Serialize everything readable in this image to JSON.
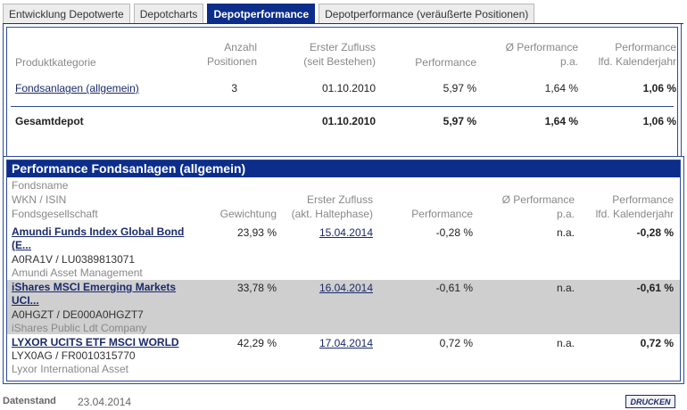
{
  "tabs": [
    {
      "label": "Entwicklung Depotwerte",
      "active": false
    },
    {
      "label": "Depotcharts",
      "active": false
    },
    {
      "label": "Depotperformance",
      "active": true
    },
    {
      "label": "Depotperformance (veräußerte Positionen)",
      "active": false
    }
  ],
  "overview": {
    "headers": {
      "category": "Produktkategorie",
      "count_1": "Anzahl",
      "count_2": "Positionen",
      "inflow_1": "Erster Zufluss",
      "inflow_2": "(seit Bestehen)",
      "performance": "Performance",
      "pa_1": "Ø Performance",
      "pa_2": "p.a.",
      "year_1": "Performance",
      "year_2": "lfd. Kalenderjahr"
    },
    "rows": [
      {
        "category": "Fondsanlagen (allgemein)",
        "count": "3",
        "inflow": "01.10.2010",
        "performance": "5,97 %",
        "pa": "1,64 %",
        "year": "1,06 %"
      }
    ],
    "total": {
      "label": "Gesamtdepot",
      "inflow": "01.10.2010",
      "performance": "5,97 %",
      "pa": "1,64 %",
      "year": "1,06 %"
    }
  },
  "funds": {
    "title": "Performance Fondsanlagen (allgemein)",
    "headers": {
      "name": "Fondsname",
      "wkn": "WKN / ISIN",
      "company": "Fondsgesellschaft",
      "weight": "Gewichtung",
      "inflow_1": "Erster Zufluss",
      "inflow_2": "(akt. Haltephase)",
      "performance": "Performance",
      "pa_1": "Ø Performance",
      "pa_2": "p.a.",
      "year_1": "Performance",
      "year_2": "lfd. Kalenderjahr"
    },
    "rows": [
      {
        "name_1": "Amundi Funds Index Global Bond",
        "name_2": "(E...",
        "wkn": "A0RA1V /  LU0389813071",
        "company": "Amundi Asset Management",
        "weight": "23,93 %",
        "inflow": "15.04.2014",
        "performance": "-0,28 %",
        "pa": "n.a.",
        "year": "-0,28 %"
      },
      {
        "name_1": "iShares MSCI Emerging Markets",
        "name_2": "UCI...",
        "wkn": "A0HGZT /  DE000A0HGZT7",
        "company": "iShares Public Ldt Company",
        "weight": "33,78 %",
        "inflow": "16.04.2014",
        "performance": "-0,61 %",
        "pa": "n.a.",
        "year": "-0,61 %"
      },
      {
        "name_1": "LYXOR UCITS ETF MSCI WORLD",
        "name_2": "",
        "wkn": "LYX0AG /  FR0010315770",
        "company": "Lyxor International Asset",
        "weight": "42,29 %",
        "inflow": "17.04.2014",
        "performance": "0,72 %",
        "pa": "n.a.",
        "year": "0,72 %"
      }
    ]
  },
  "footer": {
    "label": "Datenstand",
    "date": "23.04.2014",
    "print_label": "DRUCKEN"
  }
}
